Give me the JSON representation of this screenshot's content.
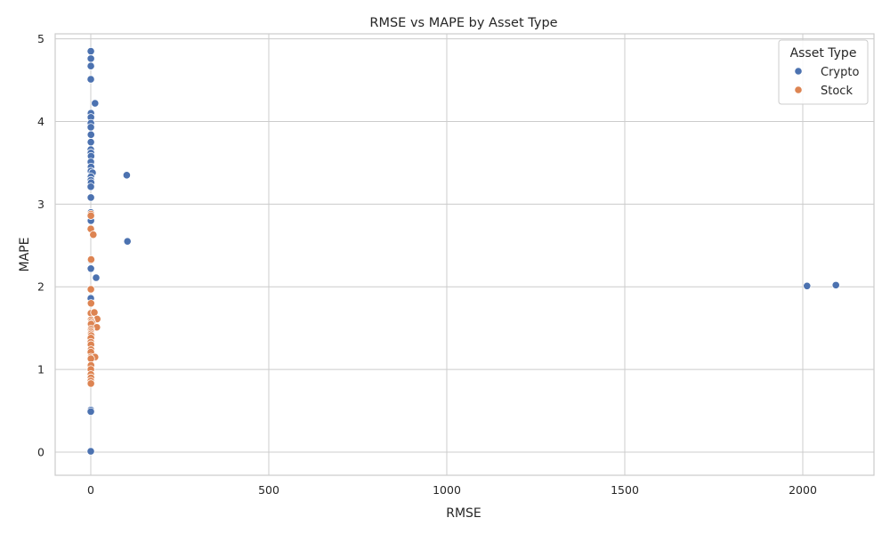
{
  "chart_data": {
    "type": "scatter",
    "title": "RMSE vs MAPE by Asset Type",
    "xlabel": "RMSE",
    "ylabel": "MAPE",
    "xlim": [
      -100,
      2200
    ],
    "ylim": [
      -0.28,
      5.06
    ],
    "xticks": [
      0,
      500,
      1000,
      1500,
      2000
    ],
    "yticks": [
      0,
      1,
      2,
      3,
      4,
      5
    ],
    "grid": true,
    "legend": {
      "title": "Asset Type",
      "placement": "top-right"
    },
    "series": [
      {
        "name": "Crypto",
        "color": "#4c72b0",
        "points": [
          [
            0.2,
            4.85
          ],
          [
            0.3,
            4.76
          ],
          [
            0.2,
            4.67
          ],
          [
            0.1,
            4.51
          ],
          [
            12,
            4.22
          ],
          [
            0.5,
            4.1
          ],
          [
            0.4,
            4.05
          ],
          [
            0.3,
            3.98
          ],
          [
            0.2,
            3.93
          ],
          [
            0.6,
            3.84
          ],
          [
            0.3,
            3.75
          ],
          [
            0.1,
            3.66
          ],
          [
            0.4,
            3.62
          ],
          [
            0.8,
            3.58
          ],
          [
            0.2,
            3.51
          ],
          [
            0.7,
            3.45
          ],
          [
            0.3,
            3.4
          ],
          [
            5,
            3.38
          ],
          [
            0.4,
            3.33
          ],
          [
            0.2,
            3.29
          ],
          [
            0.9,
            3.26
          ],
          [
            0.1,
            3.21
          ],
          [
            101,
            3.35
          ],
          [
            0.3,
            3.08
          ],
          [
            0.2,
            2.9
          ],
          [
            0.5,
            2.85
          ],
          [
            0.4,
            2.8
          ],
          [
            103,
            2.55
          ],
          [
            0.2,
            2.32
          ],
          [
            0.3,
            2.22
          ],
          [
            15,
            2.11
          ],
          [
            0.1,
            1.86
          ],
          [
            0.2,
            0.51
          ],
          [
            0.1,
            0.49
          ],
          [
            0.05,
            0.01
          ],
          [
            2012,
            2.01
          ],
          [
            2093,
            2.02
          ]
        ]
      },
      {
        "name": "Stock",
        "color": "#dd8452",
        "points": [
          [
            0.5,
            2.88
          ],
          [
            0.3,
            2.86
          ],
          [
            0.1,
            2.7
          ],
          [
            7,
            2.63
          ],
          [
            1.0,
            2.33
          ],
          [
            0.3,
            1.97
          ],
          [
            0.7,
            1.8
          ],
          [
            0.4,
            1.68
          ],
          [
            10,
            1.69
          ],
          [
            18,
            1.61
          ],
          [
            0.6,
            1.6
          ],
          [
            2.0,
            1.58
          ],
          [
            4,
            1.56
          ],
          [
            0.8,
            1.55
          ],
          [
            17,
            1.51
          ],
          [
            0.5,
            1.49
          ],
          [
            0.2,
            1.47
          ],
          [
            0.9,
            1.45
          ],
          [
            0.4,
            1.43
          ],
          [
            1.2,
            1.41
          ],
          [
            0.3,
            1.38
          ],
          [
            0.1,
            1.33
          ],
          [
            0.5,
            1.3
          ],
          [
            0.7,
            1.24
          ],
          [
            0.2,
            1.21
          ],
          [
            0.3,
            1.15
          ],
          [
            12,
            1.15
          ],
          [
            0.4,
            1.13
          ],
          [
            0.6,
            1.05
          ],
          [
            0.2,
            1.0
          ],
          [
            0.3,
            0.94
          ],
          [
            0.5,
            0.9
          ],
          [
            0.1,
            0.86
          ],
          [
            0.4,
            0.83
          ]
        ]
      }
    ]
  }
}
